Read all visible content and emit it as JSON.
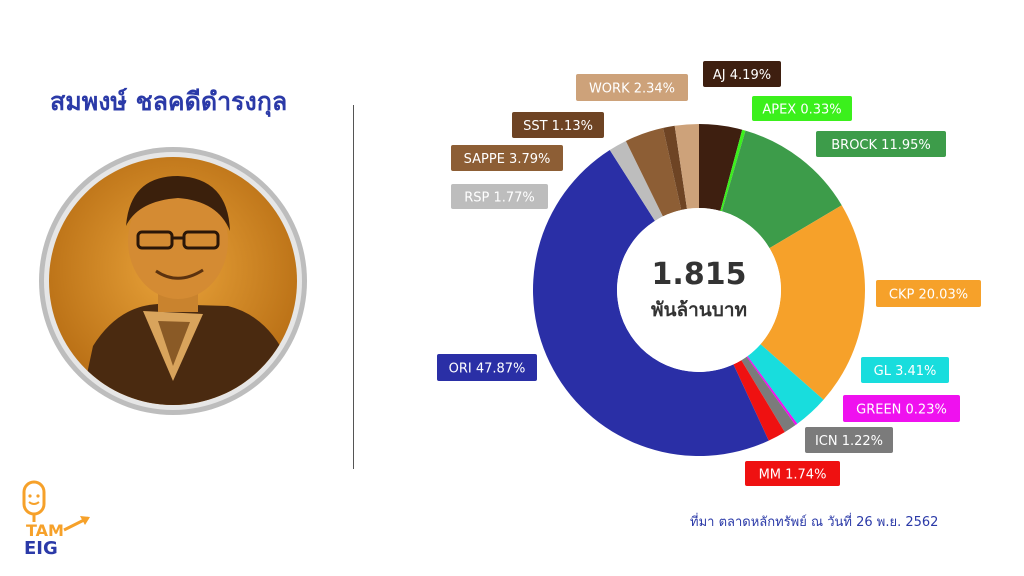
{
  "person": {
    "name": "สมพงษ์ ชลคดีดำรงกุล"
  },
  "source": "ที่มา ตลาดหลักทรัพย์ ณ วันที่ 26 พ.ย. 2562",
  "logo": {
    "text": "EIG",
    "mark": "TAM"
  },
  "chart_data": {
    "type": "pie",
    "style": "donut",
    "center_value": "1.815",
    "center_unit": "พันล้านบาท",
    "slices": [
      {
        "name": "AJ",
        "value": 4.19,
        "label": "AJ 4.19%",
        "color": "#3e1f10"
      },
      {
        "name": "APEX",
        "value": 0.33,
        "label": "APEX 0.33%",
        "color": "#3bf01c"
      },
      {
        "name": "BROCK",
        "value": 11.95,
        "label": "BROCK 11.95%",
        "color": "#3d9c4a"
      },
      {
        "name": "CKP",
        "value": 20.03,
        "label": "CKP 20.03%",
        "color": "#f6a12a"
      },
      {
        "name": "GL",
        "value": 3.41,
        "label": "GL 3.41%",
        "color": "#18dddd"
      },
      {
        "name": "GREEN",
        "value": 0.23,
        "label": "GREEN 0.23%",
        "color": "#ef11ef"
      },
      {
        "name": "ICN",
        "value": 1.22,
        "label": "ICN 1.22%",
        "color": "#7b7b7b"
      },
      {
        "name": "MM",
        "value": 1.74,
        "label": "MM 1.74%",
        "color": "#ef1111"
      },
      {
        "name": "ORI",
        "value": 47.87,
        "label": "ORI 47.87%",
        "color": "#2a2fa6"
      },
      {
        "name": "RSP",
        "value": 1.77,
        "label": "RSP 1.77%",
        "color": "#bdbdbd"
      },
      {
        "name": "SAPPE",
        "value": 3.79,
        "label": "SAPPE 3.79%",
        "color": "#8d5e35"
      },
      {
        "name": "SST",
        "value": 1.13,
        "label": "SST 1.13%",
        "color": "#6e4424"
      },
      {
        "name": "WORK",
        "value": 2.34,
        "label": "WORK 2.34%",
        "color": "#cda27a"
      }
    ]
  }
}
